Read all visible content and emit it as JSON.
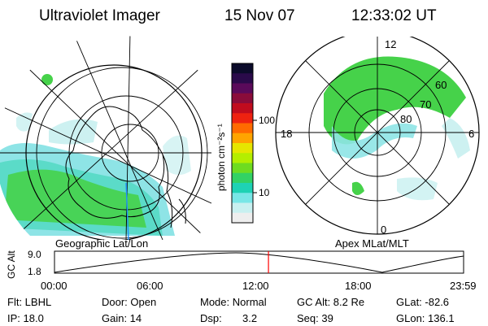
{
  "header": {
    "instrument": "Ultraviolet Imager",
    "date": "15 Nov 07",
    "time": "12:33:02 UT"
  },
  "left_panel": {
    "caption": "Geographic Lat/Lon"
  },
  "right_panel": {
    "caption": "Apex  MLat/MLT",
    "mlt_labels": {
      "top": "12",
      "left": "18",
      "right": "6",
      "bottom": "0"
    },
    "lat_labels": [
      "60",
      "70",
      "80"
    ]
  },
  "colorbar": {
    "label": "photon cm⁻²s⁻¹",
    "ticks": [
      "100",
      "10"
    ],
    "colors": [
      "#0b0b2a",
      "#2a0a4a",
      "#5a0a5a",
      "#8a0c3a",
      "#c00c1e",
      "#ee2210",
      "#ff6a00",
      "#ffa400",
      "#e6e600",
      "#b4ee00",
      "#6edc20",
      "#32d264",
      "#1ed2b4",
      "#78e6e6",
      "#c8f0f0",
      "#eeeeee"
    ]
  },
  "timeline": {
    "ylabel": "GC Alt",
    "y_max": "9.0",
    "y_min": "1.8",
    "x_ticks": [
      "00:00",
      "06:00",
      "12:00",
      "18:00",
      "23:59"
    ],
    "current_time_fraction": 0.523
  },
  "info": {
    "row1": [
      "Flt: LBHL",
      "Door: Open",
      "Mode: Normal",
      "GC Alt: 8.2 Re",
      "GLat: -82.6"
    ],
    "row2": [
      "IP: 18.0",
      "Gain: 14",
      "Dsp:",
      "3.2",
      "Seq: 39",
      "GLon: 136.1"
    ]
  },
  "colors": {
    "marker": "#ff0000",
    "aurora_green": "#3fd850",
    "aurora_cyan": "#8ee4e6"
  }
}
